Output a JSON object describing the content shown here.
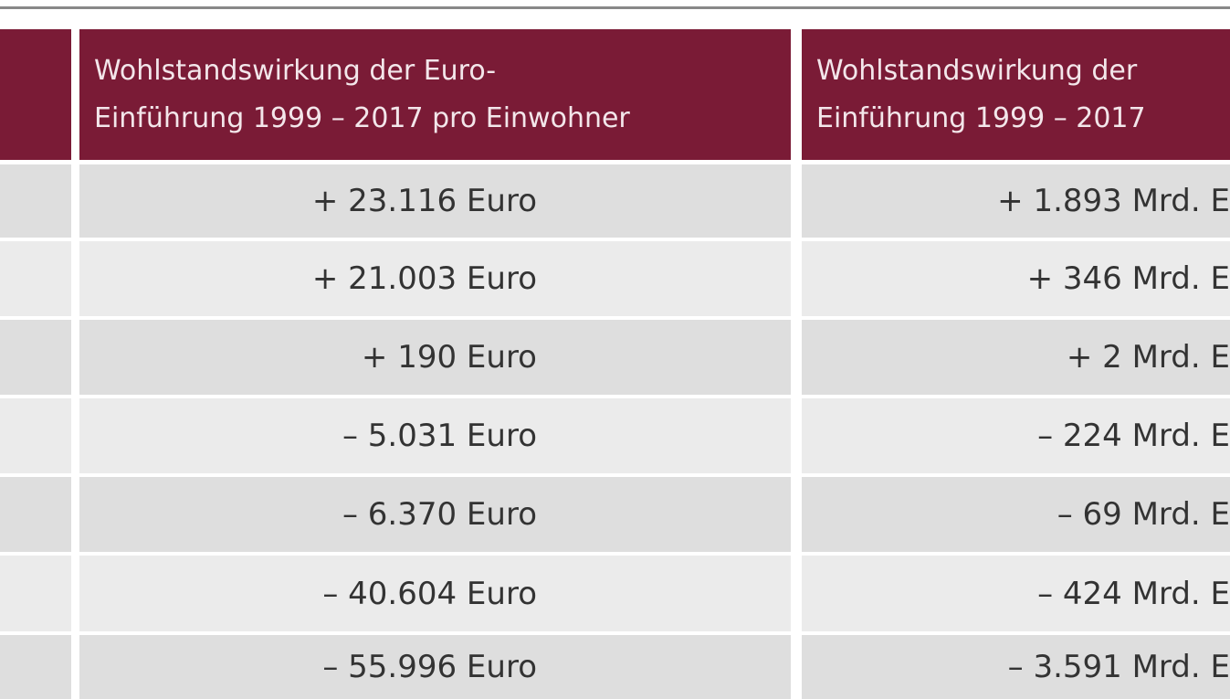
{
  "table": {
    "header": [
      [
        "Wohlstandswirkung der Euro-",
        "Einführung 1999 – 2017 pro Einwohner"
      ],
      [
        "Wohlstandswirkung der",
        "Einführung 1999 – 2017"
      ]
    ],
    "rows": [
      [
        "+ 23.116 Euro",
        "+ 1.893 Mrd. E"
      ],
      [
        "+ 21.003 Euro",
        "+ 346 Mrd. E"
      ],
      [
        "+ 190 Euro",
        "+ 2 Mrd. E"
      ],
      [
        "– 5.031 Euro",
        "– 224 Mrd. E"
      ],
      [
        "– 6.370 Euro",
        "– 69 Mrd. E"
      ],
      [
        "– 40.604 Euro",
        "– 424 Mrd. E"
      ],
      [
        "– 55.996 Euro",
        "– 3.591 Mrd. E"
      ]
    ]
  }
}
